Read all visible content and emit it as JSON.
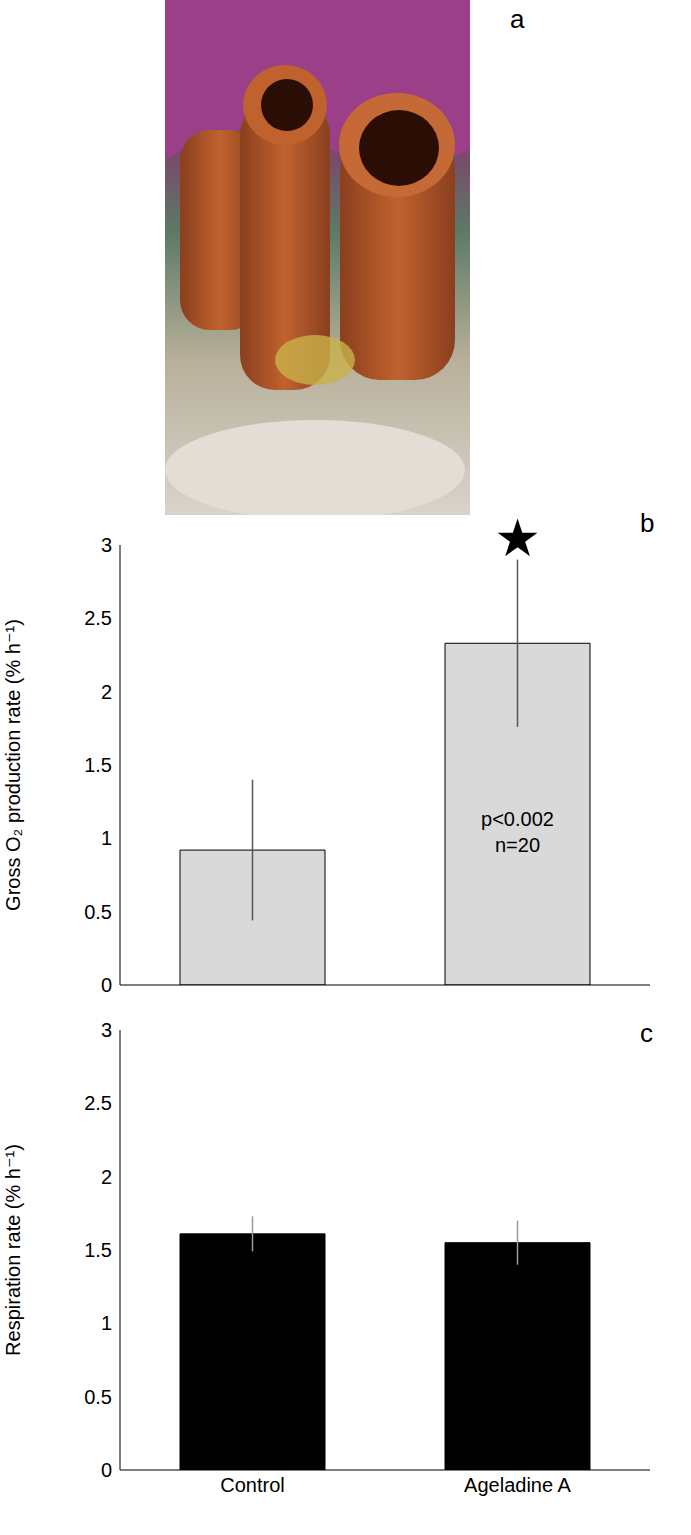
{
  "photo": {
    "panel": "a"
  },
  "chart_data": [
    {
      "panel": "b",
      "type": "bar",
      "y_label": "Gross O₂ production rate (% h⁻¹)",
      "categories": [
        "Control",
        "Ageladine A"
      ],
      "values": [
        0.92,
        2.33
      ],
      "errors": [
        0.48,
        0.57
      ],
      "color": "#d9d9d9",
      "ylim": [
        0,
        3
      ],
      "yticks": [
        0,
        0.5,
        1,
        1.5,
        2,
        2.5,
        3
      ],
      "tick_labels": "y",
      "annotations": [
        {
          "category": "Ageladine A",
          "text": "★",
          "position": "above"
        },
        {
          "category": "Ageladine A",
          "text": "p<0.002",
          "position": "inside"
        },
        {
          "category": "Ageladine A",
          "text": "n=20",
          "position": "inside"
        }
      ]
    },
    {
      "panel": "c",
      "type": "bar",
      "y_label": "Respiration rate (% h⁻¹)",
      "categories": [
        "Control",
        "Ageladine A"
      ],
      "values": [
        1.61,
        1.55
      ],
      "errors": [
        0.12,
        0.15
      ],
      "color": "#000000",
      "ylim": [
        0,
        3
      ],
      "yticks": [
        0,
        0.5,
        1,
        1.5,
        2,
        2.5,
        3
      ]
    }
  ]
}
